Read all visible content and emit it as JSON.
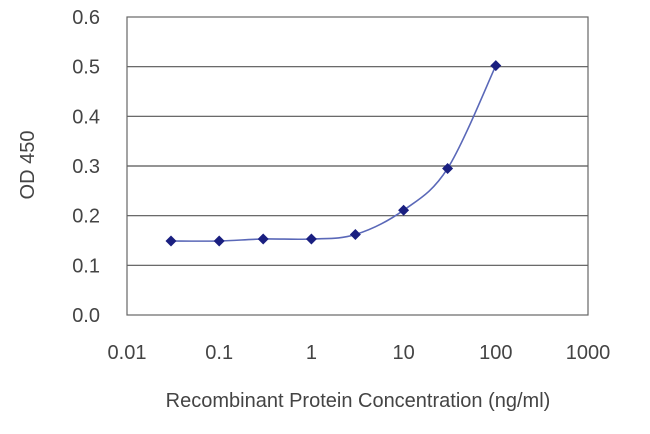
{
  "chart_data": {
    "type": "line",
    "title": "",
    "xlabel": "Recombinant Protein Concentration (ng/ml)",
    "ylabel": "OD 450",
    "x_scale": "log",
    "xlim": [
      0.01,
      1000
    ],
    "ylim": [
      0,
      0.6
    ],
    "x_tick_labels": [
      "0.01",
      "0.1",
      "1",
      "10",
      "100",
      "1000"
    ],
    "x_tick_values": [
      0.01,
      0.1,
      1,
      10,
      100,
      1000
    ],
    "y_tick_labels": [
      "0.0",
      "0.1",
      "0.2",
      "0.3",
      "0.4",
      "0.5",
      "0.6"
    ],
    "y_tick_values": [
      0,
      0.1,
      0.2,
      0.3,
      0.4,
      0.5,
      0.6
    ],
    "grid": "horizontal",
    "legend": "none",
    "series": [
      {
        "x": [
          0.03,
          0.1,
          0.3,
          1,
          3,
          10,
          30,
          100
        ],
        "y": [
          0.149,
          0.149,
          0.153,
          0.153,
          0.162,
          0.211,
          0.295,
          0.502
        ],
        "line_color": "#5a68b8",
        "marker_color": "#1a1f80",
        "marker": "diamond"
      }
    ]
  }
}
